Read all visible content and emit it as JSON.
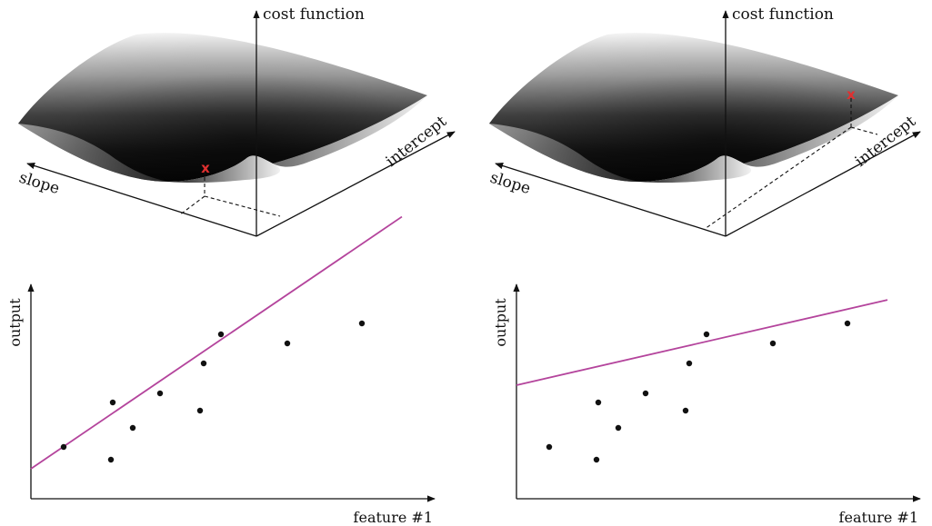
{
  "colors": {
    "axis": "#111111",
    "fit_line": "#b4449c",
    "marker": "#e03030",
    "point": "#111111"
  },
  "panels": [
    {
      "cost_surface": {
        "z_label": "cost function",
        "intercept_label": "intercept",
        "slope_label": "slope",
        "marker": "x"
      },
      "scatter": {
        "ylabel": "output",
        "xlabel": "feature #1",
        "fit_line": {
          "intercept": 33,
          "slope": 0.68
        }
      }
    },
    {
      "cost_surface": {
        "z_label": "cost function",
        "intercept_label": "intercept",
        "slope_label": "slope",
        "marker": "x"
      },
      "scatter": {
        "ylabel": "output",
        "xlabel": "feature #1",
        "fit_line": {
          "intercept": 125,
          "slope": 0.23
        }
      }
    }
  ],
  "chart_data": [
    {
      "type": "scatter",
      "xlabel": "feature #1",
      "ylabel": "output",
      "x": [
        36,
        88,
        90,
        112,
        142,
        186,
        190,
        209,
        282,
        364
      ],
      "y": [
        57,
        43,
        106,
        78,
        116,
        97,
        149,
        181,
        171,
        193
      ],
      "line": {
        "intercept": 33,
        "slope": 0.68
      }
    },
    {
      "type": "scatter",
      "xlabel": "feature #1",
      "ylabel": "output",
      "x": [
        36,
        88,
        90,
        112,
        142,
        186,
        190,
        209,
        282,
        364
      ],
      "y": [
        57,
        43,
        106,
        78,
        116,
        97,
        149,
        181,
        171,
        193
      ],
      "line": {
        "intercept": 125,
        "slope": 0.23
      }
    }
  ]
}
